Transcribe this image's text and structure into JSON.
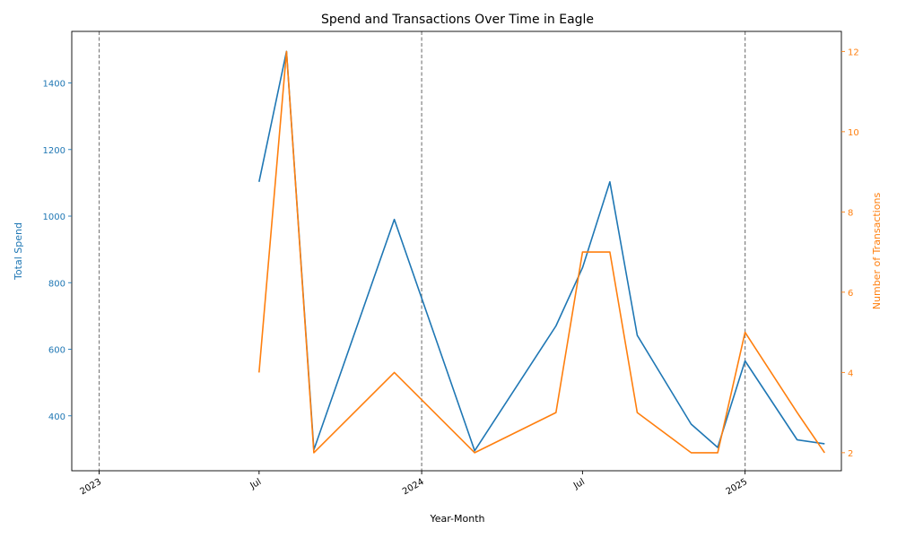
{
  "chart_data": {
    "type": "line",
    "title": "Spend and Transactions Over Time in Eagle",
    "xlabel": "Year-Month",
    "ylabel_left": "Total Spend",
    "ylabel_right": "Number of Transactions",
    "x_ticks": [
      {
        "date": "2023-01-01",
        "label": "2023"
      },
      {
        "date": "2023-07-01",
        "label": "Jul"
      },
      {
        "date": "2024-01-01",
        "label": "2024"
      },
      {
        "date": "2024-07-01",
        "label": "Jul"
      },
      {
        "date": "2025-01-01",
        "label": "2025"
      }
    ],
    "year_lines": [
      "2023-01-01",
      "2024-01-01",
      "2025-01-01"
    ],
    "xlim": [
      "2022-12-01",
      "2025-04-20"
    ],
    "ylim_left": [
      235,
      1555
    ],
    "ylim_right": [
      1.55,
      12.5
    ],
    "left_ticks": [
      400,
      600,
      800,
      1000,
      1200,
      1400
    ],
    "right_ticks": [
      2,
      4,
      6,
      8,
      10,
      12
    ],
    "grid": false,
    "colors": {
      "spend": "#1f77b4",
      "transactions": "#ff7f0e",
      "year_line": "#808080"
    },
    "series": [
      {
        "key": "spend",
        "axis": "left",
        "points": [
          {
            "x": "2023-07-01",
            "y": 1103
          },
          {
            "x": "2023-08-01",
            "y": 1495
          },
          {
            "x": "2023-09-01",
            "y": 298
          },
          {
            "x": "2023-12-01",
            "y": 990
          },
          {
            "x": "2024-03-01",
            "y": 295
          },
          {
            "x": "2024-06-01",
            "y": 670
          },
          {
            "x": "2024-07-01",
            "y": 845
          },
          {
            "x": "2024-08-01",
            "y": 1103
          },
          {
            "x": "2024-09-01",
            "y": 642
          },
          {
            "x": "2024-11-01",
            "y": 375
          },
          {
            "x": "2024-12-01",
            "y": 305
          },
          {
            "x": "2025-01-01",
            "y": 565
          },
          {
            "x": "2025-03-01",
            "y": 328
          },
          {
            "x": "2025-04-01",
            "y": 316
          }
        ]
      },
      {
        "key": "transactions",
        "axis": "right",
        "points": [
          {
            "x": "2023-07-01",
            "y": 4
          },
          {
            "x": "2023-08-01",
            "y": 12
          },
          {
            "x": "2023-09-01",
            "y": 2
          },
          {
            "x": "2023-12-01",
            "y": 4
          },
          {
            "x": "2024-03-01",
            "y": 2
          },
          {
            "x": "2024-06-01",
            "y": 3
          },
          {
            "x": "2024-07-01",
            "y": 7
          },
          {
            "x": "2024-08-01",
            "y": 7
          },
          {
            "x": "2024-09-01",
            "y": 3
          },
          {
            "x": "2024-11-01",
            "y": 2
          },
          {
            "x": "2024-12-01",
            "y": 2
          },
          {
            "x": "2025-01-01",
            "y": 5
          },
          {
            "x": "2025-03-01",
            "y": 3
          },
          {
            "x": "2025-04-01",
            "y": 2
          }
        ]
      }
    ]
  }
}
